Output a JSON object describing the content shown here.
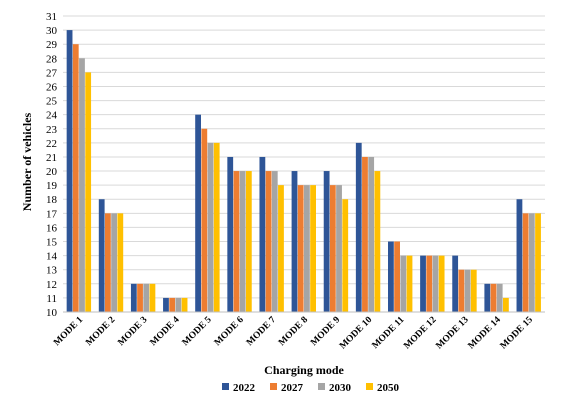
{
  "chart_data": {
    "type": "bar",
    "title": "",
    "xlabel": "Charging mode",
    "ylabel": "Number of vehicles",
    "ylim": [
      10,
      31
    ],
    "ytick_step": 1,
    "grid": true,
    "legend_position": "bottom",
    "categories": [
      "MODE 1",
      "MODE 2",
      "MODE 3",
      "MODE 4",
      "MODE 5",
      "MODE 6",
      "MODE 7",
      "MODE 8",
      "MODE 9",
      "MODE 10",
      "MODE 11",
      "MODE 12",
      "MODE 13",
      "MODE 14",
      "MODE 15"
    ],
    "series": [
      {
        "name": "2022",
        "color": "#2E5597",
        "values": [
          30,
          18,
          12,
          11,
          24,
          21,
          21,
          20,
          20,
          22,
          15,
          14,
          14,
          12,
          18
        ]
      },
      {
        "name": "2027",
        "color": "#ED7D31",
        "values": [
          29,
          17,
          12,
          11,
          23,
          20,
          20,
          19,
          19,
          21,
          15,
          14,
          13,
          12,
          17
        ]
      },
      {
        "name": "2030",
        "color": "#A5A5A5",
        "values": [
          28,
          17,
          12,
          11,
          22,
          20,
          20,
          19,
          19,
          21,
          14,
          14,
          13,
          12,
          17
        ]
      },
      {
        "name": "2050",
        "color": "#FFC000",
        "values": [
          27,
          17,
          12,
          11,
          22,
          20,
          19,
          19,
          18,
          20,
          14,
          14,
          13,
          11,
          17
        ]
      }
    ]
  }
}
